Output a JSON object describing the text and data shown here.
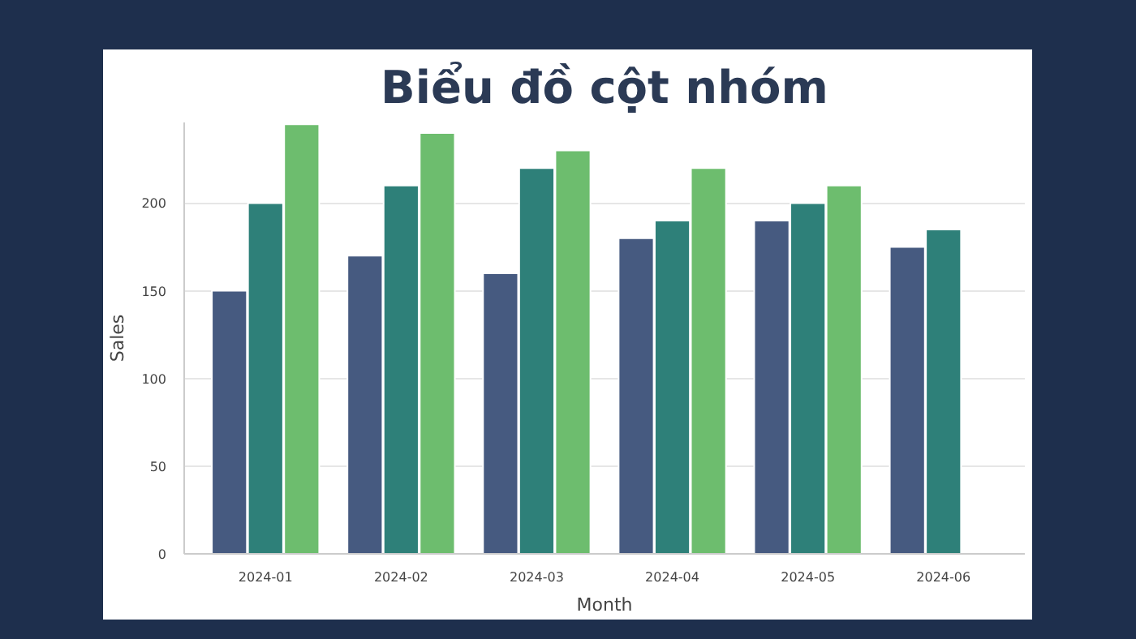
{
  "chart_data": {
    "type": "bar",
    "title": "Biểu đồ cột nhóm",
    "xlabel": "Month",
    "ylabel": "Sales",
    "categories": [
      "2024-01",
      "2024-02",
      "2024-03",
      "2024-04",
      "2024-05",
      "2024-06"
    ],
    "series": [
      {
        "color": "#465a80",
        "values": [
          150,
          170,
          160,
          180,
          190,
          175
        ]
      },
      {
        "color": "#2e8079",
        "values": [
          200,
          210,
          220,
          190,
          200,
          185
        ]
      },
      {
        "color": "#6dbd6e",
        "values": [
          245,
          240,
          230,
          220,
          210,
          null
        ]
      }
    ],
    "ylim": [
      0,
      246
    ],
    "yticks": [
      0,
      50,
      100,
      150,
      200
    ],
    "grid": "y"
  }
}
